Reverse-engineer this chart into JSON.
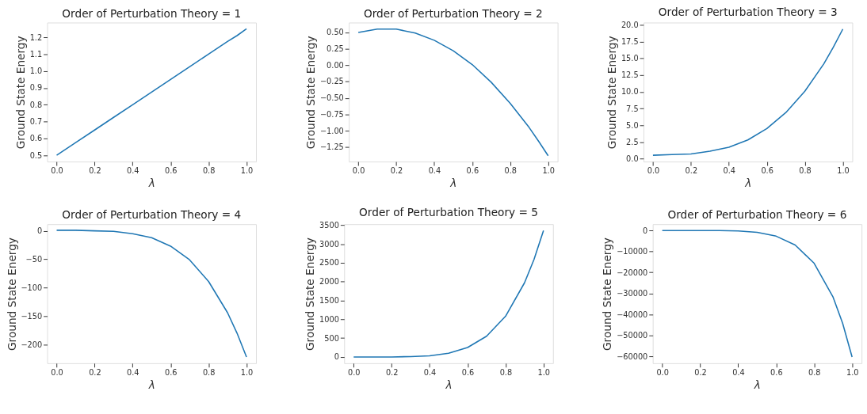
{
  "chart_data": [
    {
      "type": "line",
      "title": "Order of Perturbation Theory = 1",
      "xlabel": "λ",
      "ylabel": "Ground State Energy",
      "x": [
        0,
        0.1,
        0.2,
        0.3,
        0.4,
        0.5,
        0.6,
        0.7,
        0.8,
        0.9,
        0.95,
        1
      ],
      "series": [
        {
          "color": "#1f77b4",
          "values": [
            0.5,
            0.575,
            0.65,
            0.725,
            0.8,
            0.875,
            0.95,
            1.025,
            1.1,
            1.175,
            1.21,
            1.25
          ]
        }
      ],
      "xlim": [
        -0.05,
        1.05
      ],
      "ylim": [
        0.4625,
        1.2875
      ],
      "xticks": [
        {
          "value": 0,
          "label": "0.0"
        },
        {
          "value": 0.2,
          "label": "0.2"
        },
        {
          "value": 0.4,
          "label": "0.4"
        },
        {
          "value": 0.6,
          "label": "0.6"
        },
        {
          "value": 0.8,
          "label": "0.8"
        },
        {
          "value": 1,
          "label": "1.0"
        }
      ],
      "yticks": [
        0.5,
        0.6,
        0.7,
        0.8,
        0.9,
        {
          "value": 1,
          "label": "1.0"
        },
        1.1,
        1.2
      ]
    },
    {
      "type": "line",
      "title": "Order of Perturbation Theory = 2",
      "xlabel": "λ",
      "ylabel": "Ground State Energy",
      "x": [
        0,
        0.1,
        0.2,
        0.3,
        0.4,
        0.5,
        0.6,
        0.7,
        0.8,
        0.9,
        0.95,
        1
      ],
      "series": [
        {
          "color": "#1f77b4",
          "values": [
            0.5,
            0.55,
            0.55,
            0.49,
            0.38,
            0.22,
            0.01,
            -0.26,
            -0.58,
            -0.95,
            -1.16,
            -1.38
          ]
        }
      ],
      "xlim": [
        -0.05,
        1.05
      ],
      "ylim": [
        -1.47,
        0.65
      ],
      "xticks": [
        {
          "value": 0,
          "label": "0.0"
        },
        {
          "value": 0.2,
          "label": "0.2"
        },
        {
          "value": 0.4,
          "label": "0.4"
        },
        {
          "value": 0.6,
          "label": "0.6"
        },
        {
          "value": 0.8,
          "label": "0.8"
        },
        {
          "value": 1,
          "label": "1.0"
        }
      ],
      "yticks": [
        {
          "value": -1.25,
          "label": "−1.25"
        },
        {
          "value": -1,
          "label": "−1.00"
        },
        {
          "value": -0.75,
          "label": "−0.75"
        },
        {
          "value": -0.5,
          "label": "−0.50"
        },
        {
          "value": -0.25,
          "label": "−0.25"
        },
        {
          "value": 0,
          "label": "0.00"
        },
        0.25,
        {
          "value": 0.5,
          "label": "0.50"
        }
      ]
    },
    {
      "type": "line",
      "title": "Order of Perturbation Theory = 3",
      "xlabel": "λ",
      "ylabel": "Ground State Energy",
      "x": [
        0,
        0.1,
        0.2,
        0.3,
        0.4,
        0.5,
        0.6,
        0.7,
        0.8,
        0.9,
        0.95,
        1
      ],
      "series": [
        {
          "color": "#1f77b4",
          "values": [
            0.5,
            0.6,
            0.7,
            1.1,
            1.7,
            2.8,
            4.5,
            6.9,
            10.1,
            14.2,
            16.7,
            19.4
          ]
        }
      ],
      "xlim": [
        -0.05,
        1.05
      ],
      "ylim": [
        -0.45,
        20.38
      ],
      "xticks": [
        {
          "value": 0,
          "label": "0.0"
        },
        {
          "value": 0.2,
          "label": "0.2"
        },
        {
          "value": 0.4,
          "label": "0.4"
        },
        {
          "value": 0.6,
          "label": "0.6"
        },
        {
          "value": 0.8,
          "label": "0.8"
        },
        {
          "value": 1,
          "label": "1.0"
        }
      ],
      "yticks": [
        {
          "value": 0,
          "label": "0.0"
        },
        2.5,
        {
          "value": 5,
          "label": "5.0"
        },
        7.5,
        {
          "value": 10,
          "label": "10.0"
        },
        12.5,
        {
          "value": 15,
          "label": "15.0"
        },
        17.5,
        {
          "value": 20,
          "label": "20.0"
        }
      ]
    },
    {
      "type": "line",
      "title": "Order of Perturbation Theory = 4",
      "xlabel": "λ",
      "ylabel": "Ground State Energy",
      "x": [
        0,
        0.1,
        0.2,
        0.3,
        0.4,
        0.5,
        0.6,
        0.7,
        0.8,
        0.9,
        0.95,
        1
      ],
      "series": [
        {
          "color": "#1f77b4",
          "values": [
            1,
            1,
            0,
            -1,
            -5,
            -12,
            -27,
            -51,
            -89,
            -144,
            -180,
            -222
          ]
        }
      ],
      "xlim": [
        -0.05,
        1.05
      ],
      "ylim": [
        -233,
        11.7
      ],
      "xticks": [
        {
          "value": 0,
          "label": "0.0"
        },
        {
          "value": 0.2,
          "label": "0.2"
        },
        {
          "value": 0.4,
          "label": "0.4"
        },
        {
          "value": 0.6,
          "label": "0.6"
        },
        {
          "value": 0.8,
          "label": "0.8"
        },
        {
          "value": 1,
          "label": "1.0"
        }
      ],
      "yticks": [
        {
          "value": -200,
          "label": "−200"
        },
        {
          "value": -150,
          "label": "−150"
        },
        {
          "value": -100,
          "label": "−100"
        },
        {
          "value": -50,
          "label": "−50"
        },
        0
      ]
    },
    {
      "type": "line",
      "title": "Order of Perturbation Theory = 5",
      "xlabel": "λ",
      "ylabel": "Ground State Energy",
      "x": [
        0,
        0.1,
        0.2,
        0.3,
        0.4,
        0.5,
        0.6,
        0.7,
        0.8,
        0.9,
        0.95,
        1
      ],
      "series": [
        {
          "color": "#1f77b4",
          "values": [
            0,
            0,
            0,
            10,
            30,
            100,
            250,
            550,
            1080,
            1970,
            2590,
            3360
          ]
        }
      ],
      "xlim": [
        -0.05,
        1.05
      ],
      "ylim": [
        -167,
        3527
      ],
      "xticks": [
        {
          "value": 0,
          "label": "0.0"
        },
        {
          "value": 0.2,
          "label": "0.2"
        },
        {
          "value": 0.4,
          "label": "0.4"
        },
        {
          "value": 0.6,
          "label": "0.6"
        },
        {
          "value": 0.8,
          "label": "0.8"
        },
        {
          "value": 1,
          "label": "1.0"
        }
      ],
      "yticks": [
        0,
        500,
        1000,
        1500,
        2000,
        2500,
        3000,
        3500
      ]
    },
    {
      "type": "line",
      "title": "Order of Perturbation Theory = 6",
      "xlabel": "λ",
      "ylabel": "Ground State Energy",
      "x": [
        0,
        0.1,
        0.2,
        0.3,
        0.4,
        0.5,
        0.6,
        0.7,
        0.8,
        0.9,
        0.95,
        1
      ],
      "series": [
        {
          "color": "#1f77b4",
          "values": [
            0,
            0,
            0,
            0,
            -200,
            -900,
            -2700,
            -6900,
            -15600,
            -31800,
            -44200,
            -60300
          ]
        }
      ],
      "xlim": [
        -0.05,
        1.05
      ],
      "ylim": [
        -63277,
        3013
      ],
      "xticks": [
        {
          "value": 0,
          "label": "0.0"
        },
        {
          "value": 0.2,
          "label": "0.2"
        },
        {
          "value": 0.4,
          "label": "0.4"
        },
        {
          "value": 0.6,
          "label": "0.6"
        },
        {
          "value": 0.8,
          "label": "0.8"
        },
        {
          "value": 1,
          "label": "1.0"
        }
      ],
      "yticks": [
        {
          "value": -60000,
          "label": "−60000"
        },
        {
          "value": -50000,
          "label": "−50000"
        },
        {
          "value": -40000,
          "label": "−40000"
        },
        {
          "value": -30000,
          "label": "−30000"
        },
        {
          "value": -20000,
          "label": "−20000"
        },
        {
          "value": -10000,
          "label": "−10000"
        },
        0
      ]
    }
  ]
}
